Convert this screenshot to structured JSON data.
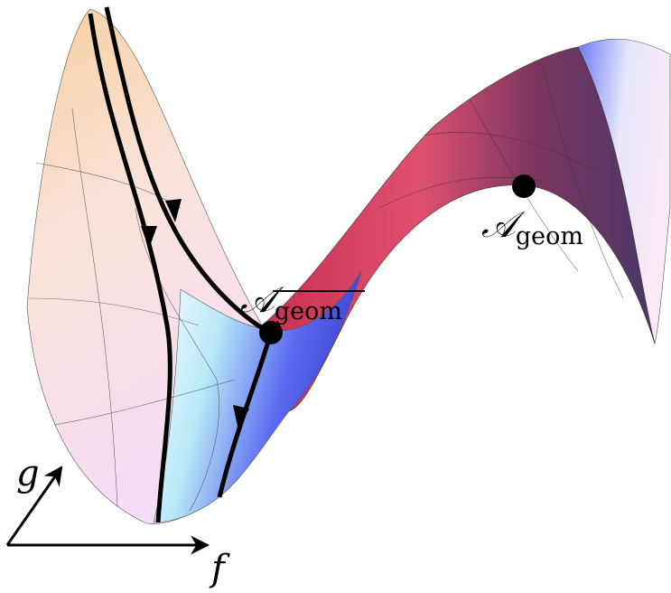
{
  "points": [
    {
      "symbol": "𝒜",
      "subscript": "geom",
      "overline": true
    },
    {
      "symbol": "𝒜",
      "subscript": "geom",
      "overline": false
    }
  ],
  "axes": {
    "vertical": "g",
    "horizontal": "f"
  }
}
